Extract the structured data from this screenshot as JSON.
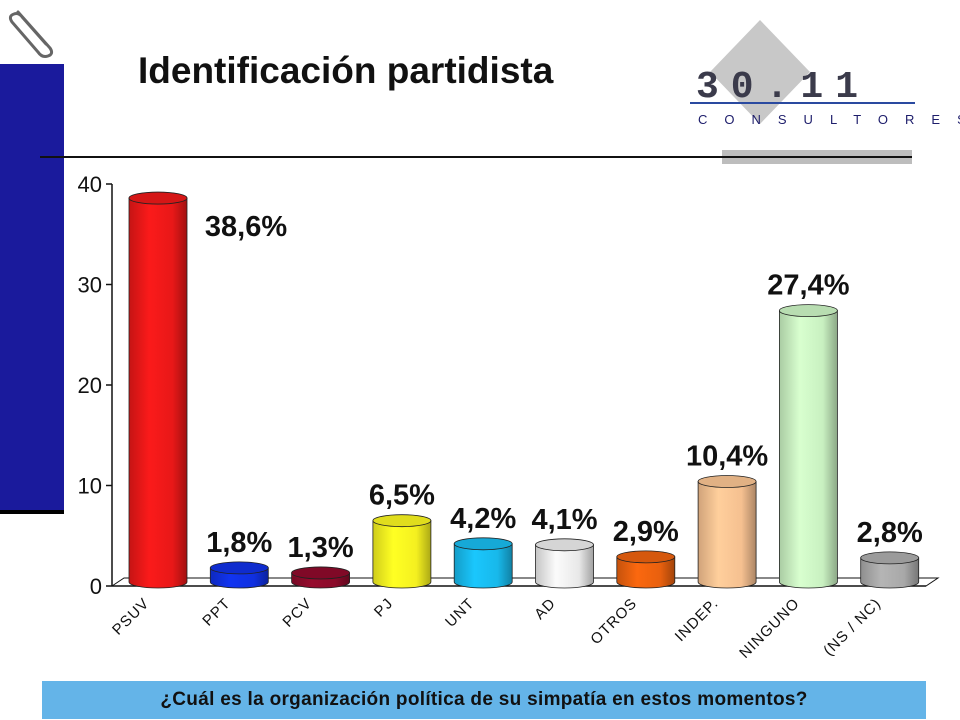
{
  "page": {
    "title": "Identificación partidista",
    "question": "¿Cuál es la organización política de su simpatía en estos momentos?",
    "accent_color": "#1a1a9c",
    "question_bar_color": "#64b4e8"
  },
  "logo": {
    "number": "30.11",
    "subtitle": "CONSULTORES"
  },
  "chart_data": {
    "type": "bar",
    "title": "",
    "xlabel": "",
    "ylabel": "",
    "ylim": [
      0,
      40
    ],
    "yticks": [
      0,
      10,
      20,
      30,
      40
    ],
    "grid": false,
    "categories": [
      "PSUV",
      "PPT",
      "PCV",
      "PJ",
      "UNT",
      "AD",
      "OTROS",
      "INDEP.",
      "NINGUNO",
      "(NS / NC)"
    ],
    "values": [
      38.6,
      1.8,
      1.3,
      6.5,
      4.2,
      4.1,
      2.9,
      10.4,
      27.4,
      2.8
    ],
    "data_labels": [
      "38,6%",
      "1,8%",
      "1,3%",
      "6,5%",
      "4,2%",
      "4,1%",
      "2,9%",
      "10,4%",
      "27,4%",
      "2,8%"
    ],
    "colors": [
      "#e81818",
      "#1030e0",
      "#8b0a2a",
      "#f4f020",
      "#18b8ea",
      "#e8e8e8",
      "#e8600e",
      "#f5c090",
      "#c8f0c0",
      "#a8a8a8"
    ]
  }
}
